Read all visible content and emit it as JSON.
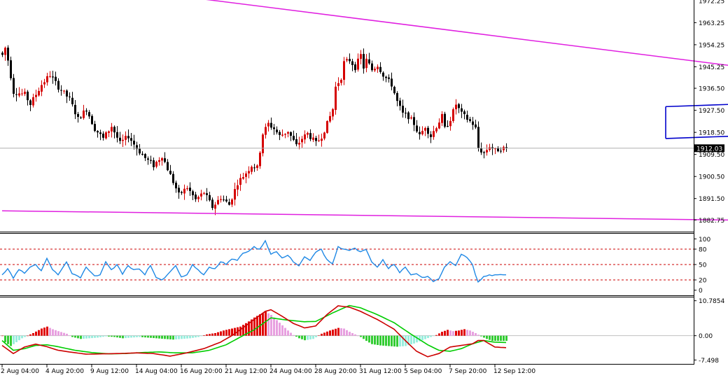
{
  "colors": {
    "background": "#ffffff",
    "bull_candle": "#d50000",
    "bear_candle": "#000000",
    "trendline": "#e020e0",
    "channel": "#0000cc",
    "rsi_line": "#1e88e5",
    "rsi_levels": "#cc0000",
    "macd_fast": "#cc0000",
    "macd_signal": "#00cc00",
    "hist_pos_strong": "#e00000",
    "hist_pos_weak": "#e8a0e0",
    "hist_neg_strong": "#33cc33",
    "hist_neg_weak": "#99eedd",
    "price_tag_bg": "#000000"
  },
  "chart_data": [
    {
      "type": "candlestick",
      "panel": "price",
      "ylim": [
        1878,
        1972.5
      ],
      "y_ticks": [
        "1963.25",
        "1954.25",
        "1945.25",
        "1936.50",
        "1927.50",
        "1918.50",
        "1909.50",
        "1900.50",
        "1891.50",
        "1882.75"
      ],
      "top_tick_partial": "1972.25",
      "current_price": "1912.03",
      "current_price_value": 1912.03,
      "x_labels": [
        "2 Aug 04:00",
        "4 Aug 20:00",
        "9 Aug 12:00",
        "14 Aug 04:00",
        "16 Aug 20:00",
        "21 Aug 12:00",
        "24 Aug 04:00",
        "28 Aug 20:00",
        "31 Aug 12:00",
        "5 Sep 04:00",
        "7 Sep 20:00",
        "12 Sep 12:00"
      ],
      "x_label_indices": [
        0,
        16,
        32,
        48,
        64,
        80,
        96,
        112,
        128,
        144,
        160,
        176
      ],
      "candle_count": 181,
      "anchors": [
        [
          0,
          1950
        ],
        [
          1,
          1953
        ],
        [
          2,
          1948
        ],
        [
          4,
          1935
        ],
        [
          8,
          1934
        ],
        [
          10,
          1930
        ],
        [
          14,
          1938
        ],
        [
          17,
          1942
        ],
        [
          20,
          1937
        ],
        [
          24,
          1932
        ],
        [
          27,
          1924
        ],
        [
          30,
          1928
        ],
        [
          33,
          1920
        ],
        [
          36,
          1916
        ],
        [
          39,
          1921
        ],
        [
          42,
          1914
        ],
        [
          45,
          1917
        ],
        [
          48,
          1912
        ],
        [
          51,
          1908
        ],
        [
          54,
          1905
        ],
        [
          57,
          1909
        ],
        [
          60,
          1901
        ],
        [
          63,
          1893
        ],
        [
          66,
          1896
        ],
        [
          69,
          1891
        ],
        [
          72,
          1894
        ],
        [
          75,
          1888
        ],
        [
          78,
          1892
        ],
        [
          81,
          1889
        ],
        [
          84,
          1898
        ],
        [
          87,
          1902
        ],
        [
          89,
          1905
        ],
        [
          91,
          1904
        ],
        [
          93,
          1918
        ],
        [
          95,
          1922
        ],
        [
          97,
          1920
        ],
        [
          99,
          1917
        ],
        [
          102,
          1919
        ],
        [
          105,
          1913
        ],
        [
          107,
          1916
        ],
        [
          109,
          1918
        ],
        [
          112,
          1914
        ],
        [
          114,
          1917
        ],
        [
          116,
          1922
        ],
        [
          118,
          1928
        ],
        [
          119,
          1937
        ],
        [
          121,
          1941
        ],
        [
          122,
          1947
        ],
        [
          124,
          1948
        ],
        [
          126,
          1945
        ],
        [
          128,
          1950
        ],
        [
          129,
          1945
        ],
        [
          130,
          1948
        ],
        [
          132,
          1944
        ],
        [
          134,
          1946
        ],
        [
          136,
          1942
        ],
        [
          139,
          1938
        ],
        [
          141,
          1931
        ],
        [
          143,
          1926
        ],
        [
          145,
          1925
        ],
        [
          147,
          1922
        ],
        [
          149,
          1917
        ],
        [
          151,
          1921
        ],
        [
          153,
          1917
        ],
        [
          155,
          1921
        ],
        [
          157,
          1925
        ],
        [
          158,
          1920
        ],
        [
          160,
          1924
        ],
        [
          162,
          1930
        ],
        [
          164,
          1926
        ],
        [
          166,
          1924
        ],
        [
          168,
          1922
        ],
        [
          169,
          1920
        ],
        [
          170,
          1912
        ],
        [
          172,
          1910
        ],
        [
          174,
          1913
        ],
        [
          176,
          1911
        ],
        [
          178,
          1912
        ],
        [
          180,
          1912.03
        ]
      ],
      "trendlines": [
        {
          "role": "resistance",
          "color": "trendline",
          "from": [
            50,
            1976
          ],
          "to": [
            380,
            1928.5
          ]
        },
        {
          "role": "support",
          "color": "trendline",
          "from": [
            0,
            1886.5
          ],
          "to": [
            310,
            1882
          ]
        },
        {
          "role": "channel-upper",
          "color": "channel",
          "from": [
            237,
            1929
          ],
          "to": [
            312,
            1932
          ]
        },
        {
          "role": "channel-lower",
          "color": "channel",
          "from": [
            237,
            1916
          ],
          "to": [
            312,
            1919
          ]
        },
        {
          "role": "channel-left-edge",
          "color": "channel",
          "from": [
            237,
            1916
          ],
          "to": [
            237,
            1929
          ]
        }
      ],
      "projection_arrow": {
        "points": [
          [
            283,
            1910.5
          ],
          [
            291,
            1915.5
          ],
          [
            302,
            1892.5
          ]
        ],
        "color": "trendline"
      }
    },
    {
      "type": "line",
      "panel": "rsi",
      "name": "RSI",
      "ylim": [
        -10,
        110
      ],
      "y_ticks": [
        "100",
        "80",
        "50",
        "20",
        "0"
      ],
      "levels": [
        80,
        50,
        20
      ],
      "last_point_index": 180,
      "anchors": [
        [
          0,
          30
        ],
        [
          2,
          42
        ],
        [
          4,
          25
        ],
        [
          6,
          40
        ],
        [
          8,
          33
        ],
        [
          10,
          45
        ],
        [
          12,
          50
        ],
        [
          14,
          38
        ],
        [
          16,
          62
        ],
        [
          18,
          40
        ],
        [
          20,
          30
        ],
        [
          23,
          55
        ],
        [
          25,
          33
        ],
        [
          28,
          25
        ],
        [
          30,
          45
        ],
        [
          33,
          28
        ],
        [
          35,
          30
        ],
        [
          37,
          55
        ],
        [
          39,
          40
        ],
        [
          41,
          50
        ],
        [
          43,
          33
        ],
        [
          45,
          48
        ],
        [
          47,
          40
        ],
        [
          49,
          42
        ],
        [
          51,
          30
        ],
        [
          53,
          48
        ],
        [
          55,
          25
        ],
        [
          57,
          20
        ],
        [
          59,
          30
        ],
        [
          62,
          48
        ],
        [
          64,
          25
        ],
        [
          66,
          30
        ],
        [
          68,
          50
        ],
        [
          70,
          38
        ],
        [
          72,
          30
        ],
        [
          74,
          45
        ],
        [
          76,
          40
        ],
        [
          78,
          55
        ],
        [
          80,
          50
        ],
        [
          82,
          62
        ],
        [
          84,
          58
        ],
        [
          86,
          72
        ],
        [
          88,
          75
        ],
        [
          90,
          85
        ],
        [
          92,
          80
        ],
        [
          94,
          95
        ],
        [
          96,
          70
        ],
        [
          98,
          75
        ],
        [
          100,
          62
        ],
        [
          102,
          68
        ],
        [
          104,
          55
        ],
        [
          106,
          48
        ],
        [
          108,
          65
        ],
        [
          110,
          58
        ],
        [
          112,
          75
        ],
        [
          114,
          80
        ],
        [
          116,
          60
        ],
        [
          118,
          50
        ],
        [
          120,
          85
        ],
        [
          122,
          80
        ],
        [
          124,
          78
        ],
        [
          126,
          82
        ],
        [
          128,
          75
        ],
        [
          130,
          80
        ],
        [
          132,
          55
        ],
        [
          134,
          45
        ],
        [
          136,
          58
        ],
        [
          138,
          42
        ],
        [
          140,
          50
        ],
        [
          142,
          36
        ],
        [
          144,
          45
        ],
        [
          146,
          30
        ],
        [
          148,
          32
        ],
        [
          150,
          25
        ],
        [
          152,
          27
        ],
        [
          154,
          18
        ],
        [
          156,
          22
        ],
        [
          158,
          45
        ],
        [
          160,
          55
        ],
        [
          162,
          48
        ],
        [
          164,
          70
        ],
        [
          166,
          65
        ],
        [
          168,
          50
        ],
        [
          169,
          30
        ],
        [
          170,
          16
        ],
        [
          172,
          25
        ],
        [
          174,
          30
        ],
        [
          176,
          30
        ],
        [
          178,
          30
        ],
        [
          180,
          30
        ]
      ]
    },
    {
      "type": "bar",
      "panel": "macd",
      "name": "MACD histogram",
      "ylim": [
        -8.7,
        11.8
      ],
      "y_ticks": [
        "10.7854",
        "0.00",
        "-7.498"
      ],
      "anchors": [
        [
          0,
          0
        ],
        [
          1,
          -2.0
        ],
        [
          3,
          -3.2
        ],
        [
          5,
          -2.0
        ],
        [
          7,
          -0.8
        ],
        [
          9,
          0.0
        ],
        [
          11,
          0.8
        ],
        [
          14,
          2.2
        ],
        [
          16,
          2.8
        ],
        [
          18,
          2.0
        ],
        [
          20,
          1.4
        ],
        [
          23,
          0.6
        ],
        [
          25,
          -0.4
        ],
        [
          28,
          -1.0
        ],
        [
          31,
          -0.8
        ],
        [
          34,
          -0.6
        ],
        [
          37,
          -0.2
        ],
        [
          40,
          -0.4
        ],
        [
          43,
          -0.8
        ],
        [
          46,
          -0.6
        ],
        [
          49,
          -0.4
        ],
        [
          52,
          -0.6
        ],
        [
          55,
          -0.8
        ],
        [
          58,
          -1.0
        ],
        [
          61,
          -1.2
        ],
        [
          64,
          -1.0
        ],
        [
          67,
          -0.8
        ],
        [
          70,
          -0.4
        ],
        [
          73,
          0.4
        ],
        [
          76,
          0.8
        ],
        [
          79,
          1.6
        ],
        [
          82,
          2.2
        ],
        [
          85,
          2.8
        ],
        [
          88,
          4.4
        ],
        [
          90,
          5.6
        ],
        [
          92,
          6.6
        ],
        [
          94,
          7.4
        ],
        [
          96,
          6.4
        ],
        [
          98,
          4.8
        ],
        [
          100,
          3.2
        ],
        [
          102,
          1.6
        ],
        [
          104,
          0.2
        ],
        [
          106,
          -0.8
        ],
        [
          108,
          -1.4
        ],
        [
          111,
          -1.0
        ],
        [
          114,
          0.6
        ],
        [
          117,
          1.6
        ],
        [
          120,
          2.4
        ],
        [
          122,
          2.2
        ],
        [
          124,
          1.2
        ],
        [
          126,
          0.4
        ],
        [
          128,
          -0.4
        ],
        [
          130,
          -1.6
        ],
        [
          132,
          -2.6
        ],
        [
          135,
          -3.0
        ],
        [
          138,
          -3.2
        ],
        [
          141,
          -3.4
        ],
        [
          144,
          -3.2
        ],
        [
          147,
          -2.4
        ],
        [
          150,
          -1.4
        ],
        [
          153,
          -0.4
        ],
        [
          155,
          0.2
        ],
        [
          157,
          1.2
        ],
        [
          159,
          1.8
        ],
        [
          161,
          1.4
        ],
        [
          163,
          1.6
        ],
        [
          165,
          2.0
        ],
        [
          167,
          1.6
        ],
        [
          169,
          0.8
        ],
        [
          171,
          -0.2
        ],
        [
          173,
          -1.0
        ],
        [
          175,
          -1.6
        ],
        [
          177,
          -1.6
        ],
        [
          180,
          -1.6
        ]
      ]
    },
    {
      "type": "line",
      "panel": "macd",
      "name": "MACD lines",
      "fast_anchors": [
        [
          0,
          -3.0
        ],
        [
          4,
          -5.5
        ],
        [
          8,
          -3.5
        ],
        [
          12,
          -2.6
        ],
        [
          16,
          -3.4
        ],
        [
          20,
          -4.5
        ],
        [
          24,
          -5.0
        ],
        [
          30,
          -5.7
        ],
        [
          36,
          -5.6
        ],
        [
          42,
          -5.5
        ],
        [
          48,
          -5.3
        ],
        [
          54,
          -5.5
        ],
        [
          60,
          -6.3
        ],
        [
          66,
          -5.3
        ],
        [
          72,
          -4.0
        ],
        [
          78,
          -2.0
        ],
        [
          82,
          0.0
        ],
        [
          86,
          2.4
        ],
        [
          90,
          5.0
        ],
        [
          94,
          7.5
        ],
        [
          96,
          8.0
        ],
        [
          100,
          6.0
        ],
        [
          104,
          3.8
        ],
        [
          108,
          2.4
        ],
        [
          112,
          3.0
        ],
        [
          116,
          6.5
        ],
        [
          120,
          9.2
        ],
        [
          124,
          8.8
        ],
        [
          128,
          7.5
        ],
        [
          134,
          5.0
        ],
        [
          140,
          2.0
        ],
        [
          144,
          -1.5
        ],
        [
          148,
          -4.8
        ],
        [
          152,
          -6.5
        ],
        [
          156,
          -5.5
        ],
        [
          160,
          -3.5
        ],
        [
          164,
          -3.0
        ],
        [
          168,
          -2.5
        ],
        [
          170,
          -1.5
        ],
        [
          172,
          -1.5
        ],
        [
          176,
          -3.5
        ],
        [
          180,
          -3.7
        ]
      ],
      "signal_anchors": [
        [
          0,
          -1.5
        ],
        [
          4,
          -4.5
        ],
        [
          8,
          -4.0
        ],
        [
          12,
          -3.0
        ],
        [
          16,
          -2.8
        ],
        [
          20,
          -3.4
        ],
        [
          26,
          -4.5
        ],
        [
          32,
          -5.2
        ],
        [
          38,
          -5.6
        ],
        [
          44,
          -5.5
        ],
        [
          50,
          -5.2
        ],
        [
          56,
          -5.0
        ],
        [
          62,
          -5.3
        ],
        [
          68,
          -5.3
        ],
        [
          74,
          -4.5
        ],
        [
          80,
          -2.8
        ],
        [
          86,
          0.0
        ],
        [
          90,
          1.8
        ],
        [
          96,
          5.5
        ],
        [
          102,
          4.8
        ],
        [
          108,
          4.3
        ],
        [
          112,
          4.4
        ],
        [
          118,
          7.0
        ],
        [
          124,
          9.3
        ],
        [
          128,
          8.6
        ],
        [
          134,
          6.5
        ],
        [
          140,
          4.0
        ],
        [
          146,
          0.5
        ],
        [
          152,
          -2.8
        ],
        [
          156,
          -4.5
        ],
        [
          160,
          -4.8
        ],
        [
          164,
          -4.0
        ],
        [
          168,
          -2.5
        ],
        [
          172,
          -1.5
        ],
        [
          176,
          -2.0
        ],
        [
          180,
          -2.1
        ]
      ]
    }
  ]
}
